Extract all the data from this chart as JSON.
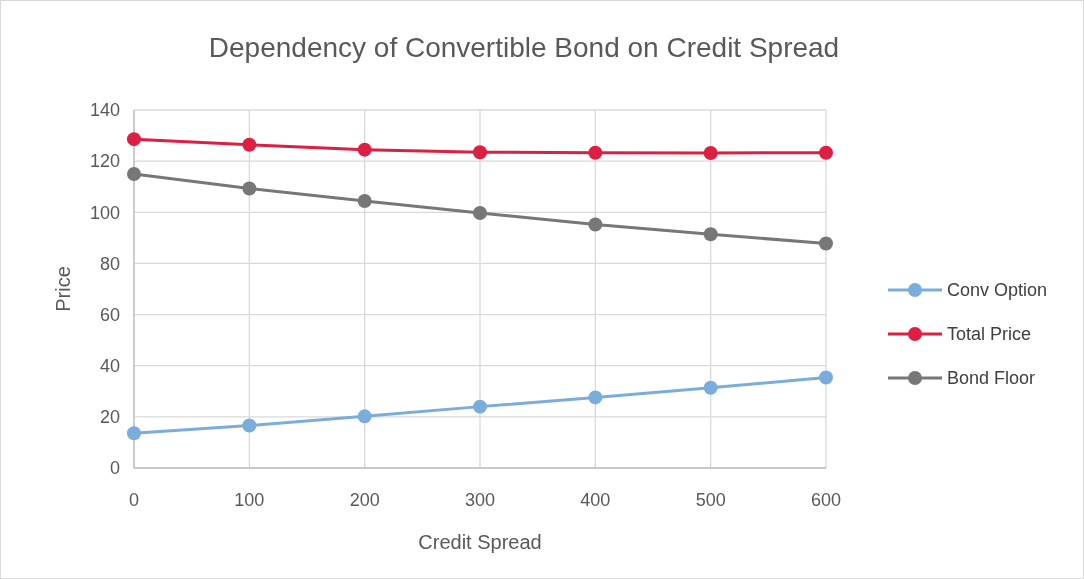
{
  "chart_data": {
    "type": "line",
    "title": "Dependency of Convertible Bond on Credit Spread",
    "xlabel": "Credit Spread",
    "ylabel": "Price",
    "x": [
      0,
      100,
      200,
      300,
      400,
      500,
      600
    ],
    "series": [
      {
        "name": "Conv Option",
        "color": "#7aaddb",
        "values": [
          13.6,
          16.6,
          20.2,
          24.0,
          27.6,
          31.4,
          35.4
        ]
      },
      {
        "name": "Total Price",
        "color": "#dc1f43",
        "values": [
          128.6,
          126.4,
          124.5,
          123.5,
          123.3,
          123.2,
          123.3
        ]
      },
      {
        "name": "Bond Floor",
        "color": "#777777",
        "values": [
          115.0,
          109.3,
          104.4,
          99.7,
          95.2,
          91.4,
          87.8
        ]
      }
    ],
    "xlim": [
      0,
      600
    ],
    "xticks": [
      0,
      100,
      200,
      300,
      400,
      500,
      600
    ],
    "ylim": [
      0,
      140
    ],
    "yticks": [
      0,
      20,
      40,
      60,
      80,
      100,
      120,
      140
    ],
    "grid": true,
    "legend": "right",
    "marker": "circle",
    "line_style": "solid"
  }
}
